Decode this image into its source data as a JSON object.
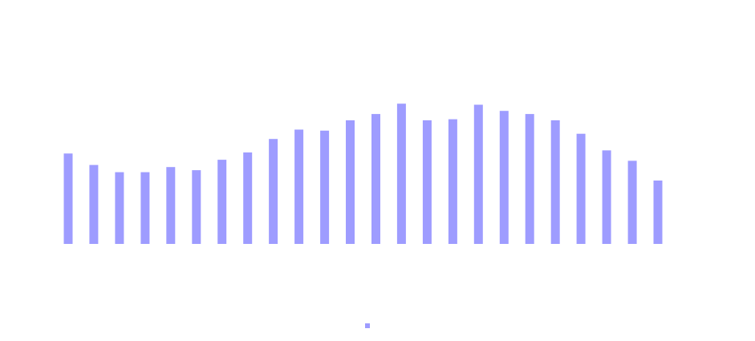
{
  "chart_data": {
    "type": "bar",
    "title": "",
    "categories": [
      "",
      "",
      "",
      "",
      "",
      "",
      "",
      "",
      "",
      "",
      "",
      "",
      "",
      "",
      "",
      "",
      "",
      "",
      "",
      "",
      "",
      "",
      "",
      ""
    ],
    "series": [
      {
        "name": "",
        "color": "#9e9cff",
        "values": [
          87,
          76,
          69,
          69,
          74,
          71,
          81,
          88,
          101,
          110,
          109,
          119,
          125,
          135,
          119,
          120,
          134,
          128,
          125,
          119,
          106,
          90,
          80,
          61
        ]
      }
    ],
    "ylim": [
      0,
      200
    ],
    "grid": false,
    "legend": "bottom-center"
  }
}
